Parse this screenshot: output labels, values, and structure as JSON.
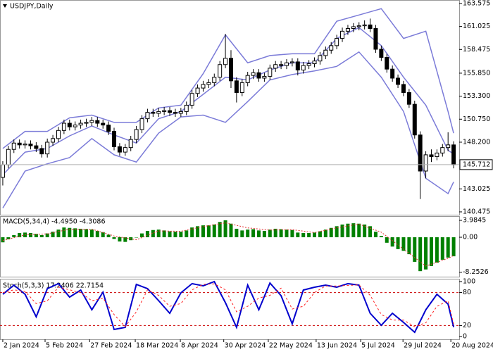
{
  "chart_data": [
    {
      "type": "candlestick",
      "title": "USDJPY,Daily",
      "xlim": [
        -0.5,
        82
      ],
      "ylim": [
        140.16,
        163.96
      ],
      "yticks": [
        163.575,
        161.025,
        158.475,
        {
          "value": 155.85,
          "label": "155.850"
        },
        {
          "value": 153.3,
          "label": "153.300"
        },
        {
          "value": 150.75,
          "label": "150.750"
        },
        {
          "value": 148.2,
          "label": "148.200"
        },
        143.025,
        140.475
      ],
      "current_price": 145.712,
      "up_color": "#ffffff",
      "down_color": "#000000",
      "outline_color": "#000000",
      "x": [
        0,
        1,
        2,
        3,
        4,
        5,
        6,
        7,
        8,
        9,
        10,
        11,
        12,
        13,
        14,
        15,
        16,
        17,
        18,
        19,
        20,
        21,
        22,
        23,
        24,
        25,
        26,
        27,
        28,
        29,
        30,
        31,
        32,
        33,
        34,
        35,
        36,
        37,
        38,
        39,
        40,
        41,
        42,
        43,
        44,
        45,
        46,
        47,
        48,
        49,
        50,
        51,
        52,
        53,
        54,
        55,
        56,
        57,
        58,
        59,
        60,
        61,
        62,
        63,
        64,
        65,
        66,
        67,
        68,
        69,
        70,
        71,
        72,
        73,
        74,
        75,
        76,
        77,
        78,
        79,
        80,
        81
      ],
      "open": [
        144.3,
        145.7,
        147.4,
        148.1,
        147.9,
        148.0,
        147.8,
        147.5,
        146.9,
        148.2,
        148.6,
        149.5,
        150.3,
        149.9,
        150.1,
        150.3,
        150.4,
        150.6,
        150.3,
        150.1,
        149.4,
        147.7,
        147.1,
        147.6,
        148.5,
        149.6,
        150.8,
        151.5,
        151.4,
        151.6,
        151.7,
        151.5,
        151.4,
        151.6,
        152.3,
        153.6,
        154.2,
        154.6,
        154.8,
        155.4,
        156.8,
        157.5,
        155.0,
        153.7,
        154.8,
        155.6,
        155.9,
        155.3,
        155.5,
        156.4,
        156.8,
        156.7,
        157.0,
        157.1,
        156.2,
        156.7,
        156.9,
        157.2,
        157.8,
        158.4,
        158.9,
        159.7,
        160.5,
        160.8,
        161.0,
        161.1,
        161.2,
        160.8,
        158.5,
        157.6,
        156.3,
        155.3,
        154.6,
        153.7,
        152.4,
        149.0,
        145.0,
        146.8,
        146.6,
        147.0,
        147.6,
        147.9
      ],
      "high": [
        146.1,
        147.8,
        148.5,
        148.5,
        148.4,
        148.4,
        148.2,
        147.9,
        148.6,
        149.0,
        149.9,
        150.7,
        150.7,
        150.5,
        150.7,
        150.8,
        151.0,
        151.0,
        150.7,
        150.5,
        149.8,
        148.1,
        148.0,
        148.9,
        150.0,
        151.2,
        151.9,
        151.9,
        152.0,
        152.1,
        152.1,
        151.9,
        152.0,
        152.7,
        154.0,
        154.6,
        155.0,
        155.2,
        155.8,
        157.2,
        160.2,
        158.4,
        155.4,
        155.2,
        156.0,
        156.3,
        156.3,
        155.9,
        156.8,
        157.2,
        157.2,
        157.4,
        157.5,
        157.5,
        157.1,
        157.3,
        157.6,
        158.2,
        158.8,
        159.3,
        160.1,
        160.9,
        161.2,
        161.4,
        161.5,
        161.7,
        161.9,
        161.2,
        158.9,
        158.0,
        156.7,
        155.7,
        155.0,
        154.1,
        152.8,
        149.4,
        147.2,
        147.4,
        147.4,
        148.0,
        149.3,
        148.3
      ],
      "low": [
        143.4,
        145.3,
        147.0,
        147.5,
        147.5,
        147.4,
        147.1,
        146.5,
        146.5,
        147.8,
        148.2,
        149.1,
        149.5,
        149.5,
        149.7,
        149.9,
        150.0,
        149.9,
        149.7,
        149.0,
        147.3,
        146.7,
        146.7,
        147.2,
        148.1,
        149.2,
        150.4,
        151.0,
        151.0,
        151.2,
        151.1,
        151.0,
        151.0,
        151.2,
        151.9,
        153.2,
        153.8,
        154.2,
        154.4,
        155.0,
        156.4,
        154.2,
        152.6,
        153.3,
        154.4,
        155.2,
        154.9,
        154.9,
        155.1,
        156.0,
        156.3,
        156.3,
        156.6,
        155.6,
        155.8,
        156.3,
        156.5,
        156.8,
        157.4,
        158.0,
        158.5,
        159.3,
        160.1,
        160.4,
        160.6,
        160.7,
        160.4,
        158.1,
        157.2,
        155.9,
        154.9,
        154.2,
        153.3,
        152.0,
        148.6,
        141.9,
        144.2,
        146.0,
        146.2,
        146.6,
        147.2,
        145.3
      ],
      "close": [
        145.7,
        147.4,
        148.1,
        147.9,
        148.0,
        147.8,
        147.5,
        146.9,
        148.2,
        148.6,
        149.5,
        150.3,
        149.9,
        150.1,
        150.3,
        150.4,
        150.6,
        150.3,
        150.1,
        149.4,
        147.7,
        147.1,
        147.6,
        148.5,
        149.6,
        150.8,
        151.5,
        151.4,
        151.6,
        151.7,
        151.5,
        151.4,
        151.6,
        152.3,
        153.6,
        154.2,
        154.6,
        154.8,
        155.4,
        156.8,
        157.5,
        155.0,
        153.7,
        154.8,
        155.6,
        155.9,
        155.3,
        155.5,
        156.4,
        156.8,
        156.7,
        157.0,
        157.1,
        156.2,
        156.7,
        156.9,
        157.2,
        157.8,
        158.4,
        158.9,
        159.7,
        160.5,
        160.8,
        161.0,
        161.1,
        161.2,
        160.8,
        158.5,
        157.6,
        156.3,
        155.3,
        154.6,
        153.7,
        152.4,
        149.0,
        145.0,
        146.8,
        146.6,
        147.0,
        147.6,
        147.9,
        145.7
      ],
      "bands": {
        "color": "#7b7bd8",
        "x": [
          0,
          4,
          8,
          12,
          16,
          20,
          24,
          28,
          32,
          36,
          40,
          44,
          48,
          52,
          56,
          60,
          64,
          68,
          72,
          76,
          80,
          81
        ],
        "upper": [
          147.5,
          149.4,
          149.4,
          150.9,
          151.2,
          150.4,
          150.4,
          152.0,
          152.3,
          155.8,
          160.1,
          157.0,
          157.8,
          158.0,
          158.0,
          161.6,
          162.3,
          163.0,
          159.7,
          160.5,
          151.6,
          149.2
        ],
        "middle": [
          144.6,
          147.1,
          147.5,
          148.9,
          150.0,
          149.0,
          148.1,
          150.8,
          151.6,
          153.5,
          155.4,
          155.1,
          156.2,
          157.0,
          157.0,
          159.7,
          160.9,
          158.9,
          155.4,
          152.3,
          147.3,
          146.9
        ],
        "lower": [
          140.9,
          145.0,
          145.8,
          146.5,
          148.6,
          146.8,
          146.0,
          149.2,
          151.0,
          151.2,
          150.4,
          152.7,
          155.1,
          155.7,
          156.1,
          156.6,
          158.2,
          155.4,
          151.6,
          144.2,
          142.5,
          143.8
        ]
      }
    },
    {
      "type": "macd",
      "title": "MACD(5,34,4) -4.4950 -4.3086",
      "xlim": [
        -0.5,
        82
      ],
      "ylim": [
        -9.3,
        4.98
      ],
      "yticks": [
        3.9845,
        {
          "value": 0,
          "label": "0.00"
        },
        -8.2526
      ],
      "color": "#008000",
      "x": [
        0,
        1,
        2,
        3,
        4,
        5,
        6,
        7,
        8,
        9,
        10,
        11,
        12,
        13,
        14,
        15,
        16,
        17,
        18,
        19,
        20,
        21,
        22,
        23,
        24,
        25,
        26,
        27,
        28,
        29,
        30,
        31,
        32,
        33,
        34,
        35,
        36,
        37,
        38,
        39,
        40,
        41,
        42,
        43,
        44,
        45,
        46,
        47,
        48,
        49,
        50,
        51,
        52,
        53,
        54,
        55,
        56,
        57,
        58,
        59,
        60,
        61,
        62,
        63,
        64,
        65,
        66,
        67,
        68,
        69,
        70,
        71,
        72,
        73,
        74,
        75,
        76,
        77,
        78,
        79,
        80,
        81
      ],
      "values": [
        -1.2,
        -0.5,
        0.5,
        1.0,
        1.1,
        1.0,
        0.8,
        0.5,
        0.9,
        1.3,
        1.8,
        2.3,
        2.2,
        2.1,
        2.0,
        1.9,
        1.8,
        1.5,
        1.2,
        0.6,
        -0.4,
        -1.0,
        -1.1,
        -0.7,
        0.0,
        0.9,
        1.5,
        1.7,
        1.8,
        1.6,
        1.4,
        1.3,
        1.3,
        1.6,
        2.3,
        2.6,
        2.8,
        2.8,
        3.0,
        3.6,
        4.0,
        3.2,
        2.0,
        1.6,
        1.8,
        1.9,
        1.6,
        1.5,
        1.8,
        2.0,
        1.9,
        1.8,
        1.7,
        1.1,
        1.0,
        1.0,
        1.1,
        1.4,
        1.8,
        2.2,
        2.6,
        3.0,
        3.2,
        3.3,
        3.2,
        3.0,
        2.6,
        1.3,
        0.3,
        -1.3,
        -2.2,
        -2.8,
        -3.2,
        -4.0,
        -5.8,
        -8.0,
        -7.6,
        -6.8,
        -6.0,
        -5.3,
        -4.8,
        -4.495
      ],
      "signal": {
        "color": "#e03030",
        "x": [
          0,
          4,
          8,
          12,
          16,
          20,
          24,
          28,
          32,
          36,
          40,
          44,
          48,
          52,
          56,
          60,
          64,
          68,
          72,
          76,
          80,
          81
        ],
        "values": [
          -0.8,
          0.6,
          0.8,
          1.9,
          1.9,
          0.3,
          -0.6,
          1.5,
          1.4,
          2.5,
          3.4,
          2.2,
          1.7,
          1.8,
          1.1,
          2.2,
          3.1,
          1.2,
          -2.8,
          -6.8,
          -5.0,
          -4.3086
        ]
      }
    },
    {
      "type": "stochastic",
      "title": "Stoch(5,3,3) 17.2406 22.7154",
      "xlim": [
        -0.5,
        82
      ],
      "ylim": [
        -5.1,
        105.1
      ],
      "yticks": [
        100,
        80,
        20,
        0
      ],
      "levels": [
        80,
        20
      ],
      "level_color": "#cc0000",
      "xticks": [
        {
          "value": 0,
          "label": "2 Jan 2024"
        },
        {
          "value": 7.6,
          "label": "5 Feb 2024"
        },
        {
          "value": 15.6,
          "label": "27 Feb 2024"
        },
        {
          "value": 23.8,
          "label": "18 Mar 2024"
        },
        {
          "value": 31.9,
          "label": "8 Apr 2024"
        },
        {
          "value": 39.7,
          "label": "30 Apr 2024"
        },
        {
          "value": 47.7,
          "label": "22 May 2024"
        },
        {
          "value": 56.3,
          "label": "13 Jun 2024"
        },
        {
          "value": 64.3,
          "label": "5 Jul 2024"
        },
        {
          "value": 71.9,
          "label": "29 Jul 2024"
        },
        {
          "value": 80.5,
          "label": "20 Aug 2024"
        }
      ],
      "series": [
        {
          "color": "#0000cd",
          "x": [
            0,
            2,
            4,
            6,
            8,
            10,
            12,
            14,
            16,
            18,
            20,
            22,
            24,
            26,
            28,
            30,
            32,
            34,
            36,
            38,
            40,
            42,
            44,
            46,
            48,
            50,
            52,
            54,
            56,
            58,
            60,
            62,
            64,
            66,
            68,
            70,
            72,
            74,
            76,
            78,
            80,
            81
          ],
          "values": [
            76.9,
            93.6,
            76.9,
            35.9,
            87.2,
            96.2,
            71.8,
            84.6,
            48.7,
            80.8,
            12.8,
            16.7,
            94.9,
            87.2,
            65.4,
            42.3,
            79.5,
            96.2,
            92.3,
            100,
            61.5,
            16.7,
            93.6,
            48.7,
            97.4,
            74.4,
            23.1,
            84.6,
            89.7,
            93.6,
            89.7,
            96.2,
            93.6,
            42.3,
            20.5,
            42.3,
            25.6,
            7.7,
            48.7,
            76.9,
            59.0,
            17.2406
          ]
        },
        {
          "color": "#ff2020",
          "x": [
            0,
            2,
            4,
            6,
            8,
            10,
            12,
            14,
            16,
            18,
            20,
            22,
            24,
            26,
            28,
            30,
            32,
            34,
            36,
            38,
            40,
            42,
            44,
            46,
            48,
            50,
            52,
            54,
            56,
            58,
            60,
            62,
            64,
            66,
            68,
            70,
            72,
            74,
            76,
            78,
            80,
            81
          ],
          "values": [
            80,
            85,
            82,
            60,
            65,
            90,
            85,
            80,
            65,
            70,
            40,
            18,
            45,
            85,
            75,
            55,
            60,
            85,
            95,
            96,
            85,
            45,
            55,
            70,
            75,
            88,
            50,
            55,
            80,
            92,
            92,
            93,
            94,
            75,
            40,
            30,
            30,
            18,
            25,
            55,
            65,
            22.7154
          ]
        }
      ]
    }
  ]
}
